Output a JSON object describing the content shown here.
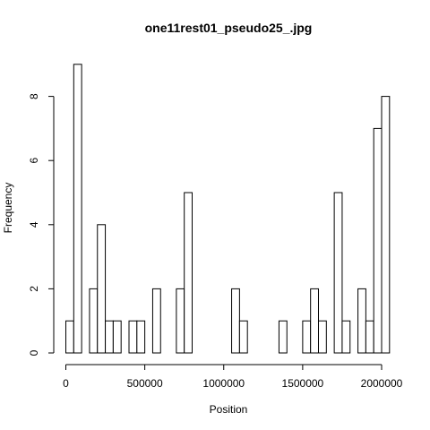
{
  "chart_data": {
    "type": "bar",
    "title": "one11rest01_pseudo25_.jpg",
    "xlabel": "Position",
    "ylabel": "Frequency",
    "bin_width": 50000,
    "bin_starts": [
      0,
      50000,
      100000,
      150000,
      200000,
      250000,
      300000,
      350000,
      400000,
      450000,
      500000,
      550000,
      600000,
      650000,
      700000,
      750000,
      800000,
      850000,
      900000,
      950000,
      1000000,
      1050000,
      1100000,
      1150000,
      1200000,
      1250000,
      1300000,
      1350000,
      1400000,
      1450000,
      1500000,
      1550000,
      1600000,
      1650000,
      1700000,
      1750000,
      1800000,
      1850000,
      1900000,
      1950000,
      2000000
    ],
    "values": [
      1,
      9,
      0,
      2,
      4,
      1,
      1,
      0,
      1,
      1,
      0,
      2,
      0,
      0,
      2,
      5,
      0,
      0,
      0,
      0,
      0,
      2,
      1,
      0,
      0,
      0,
      0,
      1,
      0,
      0,
      1,
      2,
      1,
      0,
      5,
      1,
      0,
      2,
      1,
      7,
      8
    ],
    "xlim": [
      0,
      2050000
    ],
    "ylim": [
      0,
      9
    ],
    "xticks": [
      0,
      500000,
      1000000,
      1500000,
      2000000
    ],
    "xtick_labels": [
      "0",
      "500000",
      "1000000",
      "1500000",
      "2000000"
    ],
    "yticks": [
      0,
      2,
      4,
      6,
      8
    ],
    "ytick_labels": [
      "0",
      "2",
      "4",
      "6",
      "8"
    ],
    "grid": false,
    "legend": "none"
  }
}
